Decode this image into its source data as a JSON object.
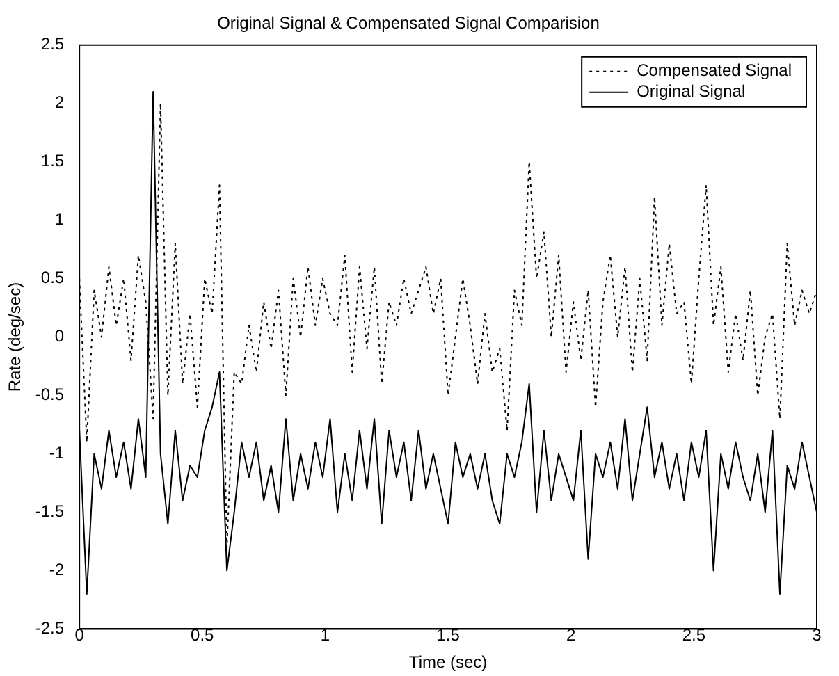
{
  "chart_data": {
    "type": "line",
    "title": "Original Signal & Compensated Signal Comparision",
    "xlabel": "Time (sec)",
    "ylabel": "Rate (deg/sec)",
    "x": [
      0,
      0.03,
      0.06,
      0.09,
      0.12,
      0.15,
      0.18,
      0.21,
      0.24,
      0.27,
      0.3,
      0.33,
      0.36,
      0.39,
      0.42,
      0.45,
      0.48,
      0.51,
      0.54,
      0.57,
      0.6,
      0.63,
      0.66,
      0.69,
      0.72,
      0.75,
      0.78,
      0.81,
      0.84,
      0.87,
      0.9,
      0.93,
      0.96,
      0.99,
      1.02,
      1.05,
      1.08,
      1.11,
      1.14,
      1.17,
      1.2,
      1.23,
      1.26,
      1.29,
      1.32,
      1.35,
      1.38,
      1.41,
      1.44,
      1.47,
      1.5,
      1.53,
      1.56,
      1.59,
      1.62,
      1.65,
      1.68,
      1.71,
      1.74,
      1.77,
      1.8,
      1.83,
      1.86,
      1.89,
      1.92,
      1.95,
      1.98,
      2.01,
      2.04,
      2.07,
      2.1,
      2.13,
      2.16,
      2.19,
      2.22,
      2.25,
      2.28,
      2.31,
      2.34,
      2.37,
      2.4,
      2.43,
      2.46,
      2.49,
      2.52,
      2.55,
      2.58,
      2.61,
      2.64,
      2.67,
      2.7,
      2.73,
      2.76,
      2.79,
      2.82,
      2.85,
      2.88,
      2.91,
      2.94,
      2.97,
      3
    ],
    "series": [
      {
        "name": "Compensated Signal",
        "color": "#000000",
        "line_style": "dotted",
        "values": [
          0.5,
          -0.9,
          0.4,
          0,
          0.6,
          0.1,
          0.5,
          -0.2,
          0.7,
          0.3,
          -0.7,
          2,
          -0.5,
          0.8,
          -0.4,
          0.2,
          -0.6,
          0.5,
          0.2,
          1.3,
          -1.8,
          -0.3,
          -0.4,
          0.1,
          -0.3,
          0.3,
          -0.1,
          0.4,
          -0.5,
          0.5,
          0,
          0.6,
          0.1,
          0.5,
          0.2,
          0.1,
          0.7,
          -0.3,
          0.6,
          -0.1,
          0.6,
          -0.4,
          0.3,
          0.1,
          0.5,
          0.2,
          0.4,
          0.6,
          0.2,
          0.5,
          -0.5,
          0,
          0.5,
          0.1,
          -0.4,
          0.2,
          -0.3,
          -0.1,
          -0.8,
          0.4,
          0.1,
          1.5,
          0.5,
          0.9,
          0,
          0.7,
          -0.3,
          0.3,
          -0.2,
          0.4,
          -0.6,
          0.3,
          0.7,
          0,
          0.6,
          -0.3,
          0.5,
          -0.2,
          1.2,
          0.1,
          0.8,
          0.2,
          0.3,
          -0.4,
          0.5,
          1.3,
          0.1,
          0.6,
          -0.3,
          0.2,
          -0.2,
          0.4,
          -0.5,
          0,
          0.2,
          -0.7,
          0.8,
          0.1,
          0.4,
          0.2,
          0.4
        ]
      },
      {
        "name": "Original Signal",
        "color": "#000000",
        "line_style": "solid",
        "values": [
          -0.8,
          -2.2,
          -1,
          -1.3,
          -0.8,
          -1.2,
          -0.9,
          -1.3,
          -0.7,
          -1.2,
          2.1,
          -1,
          -1.6,
          -0.8,
          -1.4,
          -1.1,
          -1.2,
          -0.8,
          -0.6,
          -0.3,
          -2,
          -1.5,
          -0.9,
          -1.2,
          -0.9,
          -1.4,
          -1.1,
          -1.5,
          -0.7,
          -1.4,
          -1,
          -1.3,
          -0.9,
          -1.2,
          -0.7,
          -1.5,
          -1,
          -1.4,
          -0.8,
          -1.3,
          -0.7,
          -1.6,
          -0.8,
          -1.2,
          -0.9,
          -1.4,
          -0.8,
          -1.3,
          -1,
          -1.3,
          -1.6,
          -0.9,
          -1.2,
          -1,
          -1.3,
          -1,
          -1.4,
          -1.6,
          -1,
          -1.2,
          -0.9,
          -0.4,
          -1.5,
          -0.8,
          -1.4,
          -1,
          -1.2,
          -1.4,
          -0.8,
          -1.9,
          -1,
          -1.2,
          -0.9,
          -1.3,
          -0.7,
          -1.4,
          -1,
          -0.6,
          -1.2,
          -0.9,
          -1.3,
          -1,
          -1.4,
          -0.9,
          -1.2,
          -0.8,
          -2,
          -1,
          -1.3,
          -0.9,
          -1.2,
          -1.4,
          -1,
          -1.5,
          -0.8,
          -2.2,
          -1.1,
          -1.3,
          -0.9,
          -1.2,
          -1.5
        ]
      }
    ],
    "xlim": [
      0,
      3
    ],
    "xticks": [
      0,
      0.5,
      1,
      1.5,
      2,
      2.5,
      3
    ],
    "ylim": [
      -2.5,
      2.5
    ],
    "yticks": [
      -2.5,
      -2,
      -1.5,
      -1,
      -0.5,
      0,
      0.5,
      1,
      1.5,
      2,
      2.5
    ],
    "legend": "top right"
  }
}
